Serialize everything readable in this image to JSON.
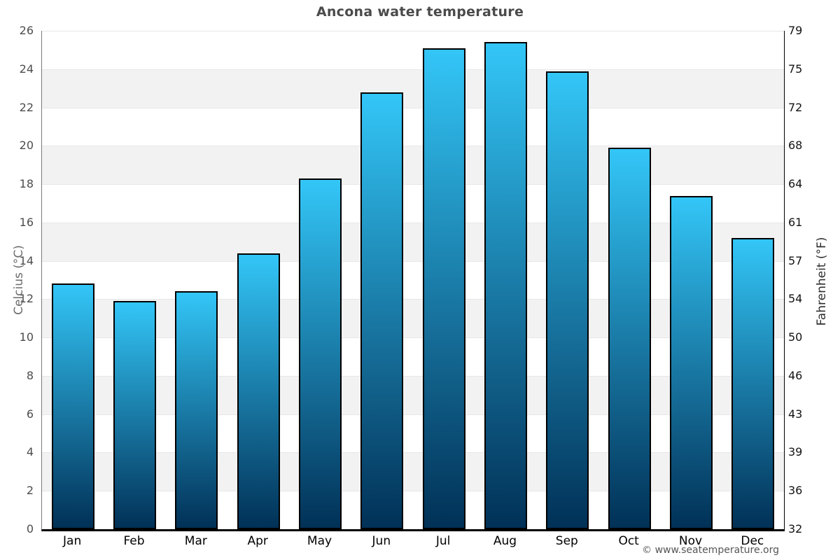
{
  "title": "Ancona water temperature",
  "axes": {
    "left_label": "Celcius (°C)",
    "right_label": "Fahrenheit (°F)"
  },
  "source": "© www.seatemperature.org",
  "chart_data": {
    "type": "bar",
    "title": "Ancona water temperature",
    "xlabel": "",
    "ylabel_left": "Celcius (°C)",
    "ylabel_right": "Fahrenheit (°F)",
    "categories": [
      "Jan",
      "Feb",
      "Mar",
      "Apr",
      "May",
      "Jun",
      "Jul",
      "Aug",
      "Sep",
      "Oct",
      "Nov",
      "Dec"
    ],
    "values": [
      12.8,
      11.9,
      12.4,
      14.4,
      18.3,
      22.8,
      25.1,
      25.4,
      23.9,
      19.9,
      17.4,
      15.2
    ],
    "ylim": [
      0,
      26
    ],
    "celsius_ticks": [
      0,
      2,
      4,
      6,
      8,
      10,
      12,
      14,
      16,
      18,
      20,
      22,
      24,
      26
    ],
    "fahrenheit_tick_labels": [
      "32",
      "36",
      "39",
      "43",
      "46",
      "50",
      "54",
      "57",
      "61",
      "64",
      "68",
      "72",
      "75",
      "79"
    ],
    "grid": true,
    "legend": false,
    "band_colors": [
      "#ffffff",
      "#f2f2f2"
    ],
    "gridline_color": "#e7e7e7",
    "bar_gradient_top": "#33c6f7",
    "bar_gradient_bottom": "#013157",
    "bar_border_color": "#000000"
  }
}
